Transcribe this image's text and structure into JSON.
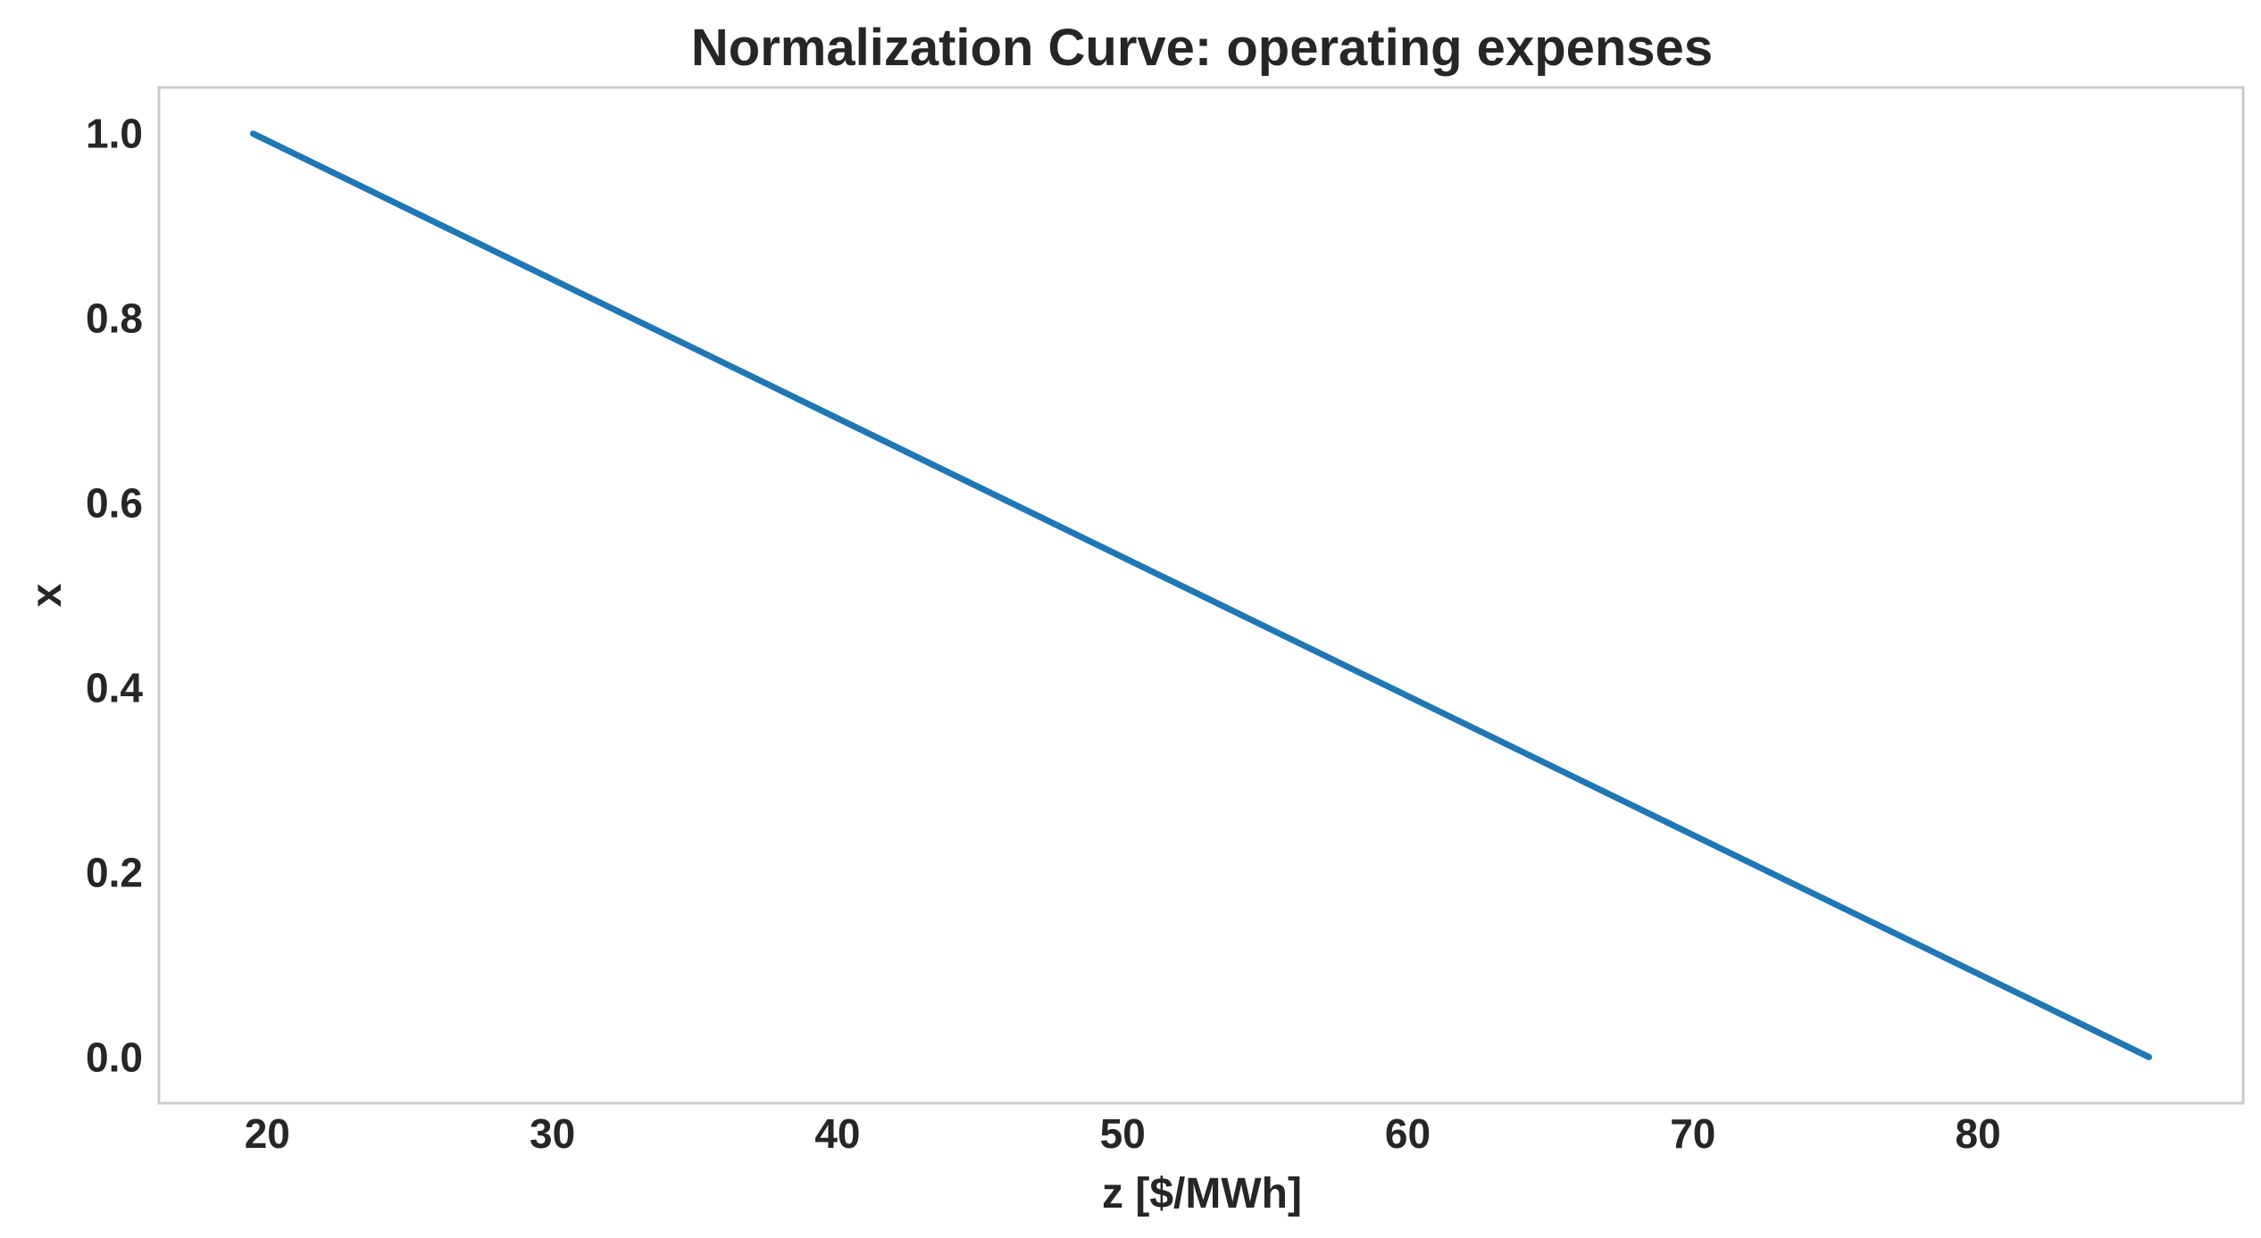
{
  "chart_data": {
    "type": "line",
    "title": "Normalization Curve: operating expenses",
    "xlabel": "z [$/MWh]",
    "ylabel": "x",
    "xlim": [
      16.2,
      89.3
    ],
    "ylim": [
      -0.05,
      1.05
    ],
    "xticks": [
      "20",
      "30",
      "40",
      "50",
      "60",
      "70",
      "80"
    ],
    "yticks": [
      "0.0",
      "0.2",
      "0.4",
      "0.6",
      "0.8",
      "1.0"
    ],
    "grid": false,
    "series": [
      {
        "x": [
          19.5,
          86.0
        ],
        "y": [
          1.0,
          0.0
        ],
        "color": "#1f77b4"
      }
    ]
  }
}
